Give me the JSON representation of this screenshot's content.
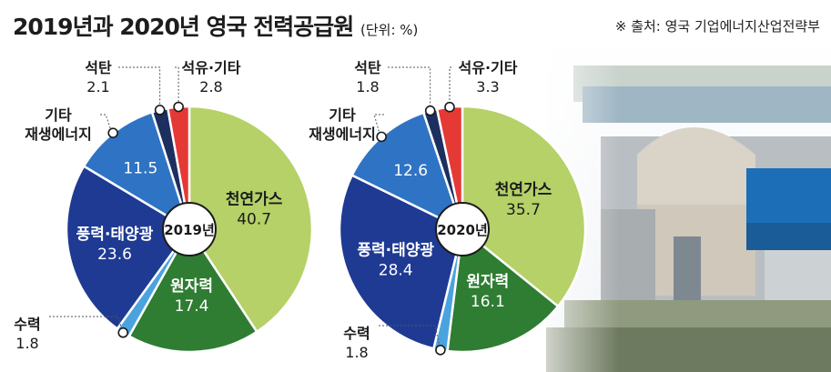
{
  "header": {
    "title": "2019년과 2020년 영국 전력공급원",
    "unit": "(단위: %)",
    "source": "※ 출처: 영국 기업에너지산업전략부"
  },
  "colors": {
    "natural_gas": "#b5d167",
    "nuclear": "#2e7d32",
    "hydro": "#4aa3df",
    "wind_solar": "#1f3a93",
    "other_renewable": "#2f73c4",
    "coal": "#1c2f5e",
    "oil_other": "#e53935"
  },
  "chart_data": [
    {
      "type": "pie",
      "title": "2019년",
      "slices": [
        {
          "key": "natural_gas",
          "label": "천연가스",
          "value": 40.7
        },
        {
          "key": "nuclear",
          "label": "원자력",
          "value": 17.4
        },
        {
          "key": "hydro",
          "label": "수력",
          "value": 1.8
        },
        {
          "key": "wind_solar",
          "label": "풍력·태양광",
          "value": 23.6
        },
        {
          "key": "other_renewable",
          "label": "기타\n재생에너지",
          "value": 11.5
        },
        {
          "key": "coal",
          "label": "석탄",
          "value": 2.1
        },
        {
          "key": "oil_other",
          "label": "석유·기타",
          "value": 2.8
        }
      ]
    },
    {
      "type": "pie",
      "title": "2020년",
      "slices": [
        {
          "key": "natural_gas",
          "label": "천연가스",
          "value": 35.7
        },
        {
          "key": "nuclear",
          "label": "원자력",
          "value": 16.1
        },
        {
          "key": "hydro",
          "label": "수력",
          "value": 1.8
        },
        {
          "key": "wind_solar",
          "label": "풍력·태양광",
          "value": 28.4
        },
        {
          "key": "other_renewable",
          "label": "기타\n재생에너지",
          "value": 12.6
        },
        {
          "key": "coal",
          "label": "석탄",
          "value": 1.8
        },
        {
          "key": "oil_other",
          "label": "석유·기타",
          "value": 3.3
        }
      ]
    }
  ]
}
